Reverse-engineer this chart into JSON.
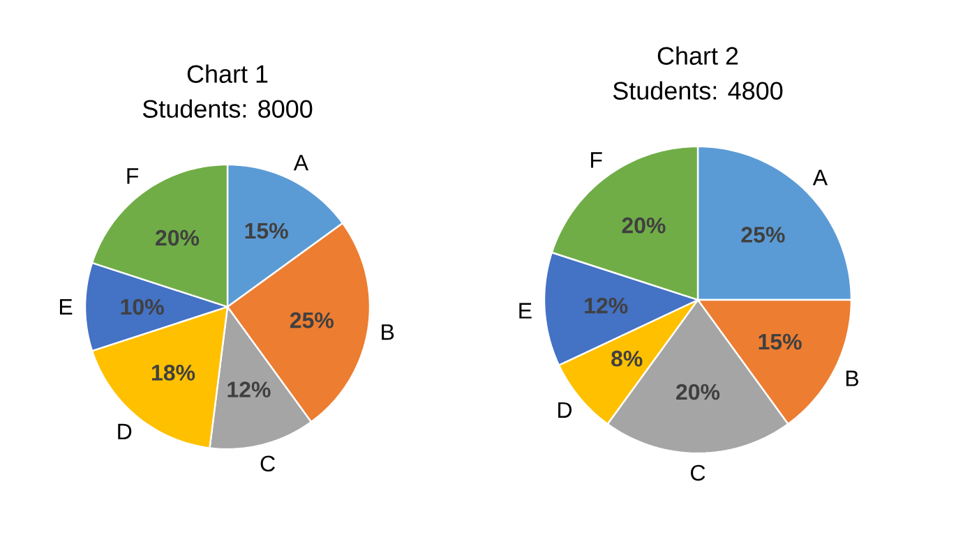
{
  "chart_data": [
    {
      "type": "pie",
      "title": "Chart 1",
      "subtitle": "Students: 8000",
      "categories": [
        "A",
        "B",
        "C",
        "D",
        "E",
        "F"
      ],
      "values": [
        15,
        25,
        12,
        18,
        10,
        20
      ],
      "value_labels": [
        "15%",
        "25%",
        "12%",
        "18%",
        "10%",
        "20%"
      ],
      "colors": [
        "#5b9bd5",
        "#ed7d31",
        "#a5a5a5",
        "#ffc000",
        "#4472c4",
        "#70ad47"
      ]
    },
    {
      "type": "pie",
      "title": "Chart 2",
      "subtitle": "Students: 4800",
      "categories": [
        "A",
        "B",
        "C",
        "D",
        "E",
        "F"
      ],
      "values": [
        25,
        15,
        20,
        8,
        12,
        20
      ],
      "value_labels": [
        "25%",
        "15%",
        "20%",
        "8%",
        "12%",
        "20%"
      ],
      "colors": [
        "#5b9bd5",
        "#ed7d31",
        "#a5a5a5",
        "#ffc000",
        "#4472c4",
        "#70ad47"
      ]
    }
  ]
}
